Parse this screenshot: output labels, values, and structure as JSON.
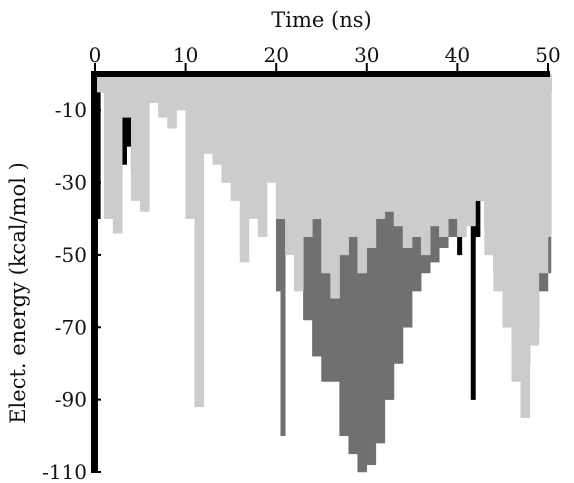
{
  "chart_data": {
    "type": "line",
    "title": "",
    "xlabel": "Time (ns)",
    "ylabel": "Elect. energy (kcal/mol )",
    "x_axis_position": "top",
    "xlim": [
      0,
      50
    ],
    "ylim": [
      -110,
      0
    ],
    "x_ticks": [
      0,
      10,
      20,
      30,
      40,
      50
    ],
    "y_ticks": [
      -10,
      -30,
      -50,
      -70,
      -90,
      -110
    ],
    "grid": false,
    "legend": "none",
    "series": [
      {
        "color": "#000000",
        "x": [
          0,
          0.3,
          0.6,
          1.5,
          2,
          2.5,
          3,
          3.5,
          4,
          4.5,
          5,
          6,
          8,
          10,
          12,
          14,
          16,
          18,
          19.5,
          20,
          20.5,
          21,
          22,
          24,
          26,
          28,
          30,
          32,
          34,
          36,
          38,
          39,
          40,
          40.5,
          41,
          41.5,
          42,
          42.5,
          43,
          44,
          45,
          46,
          47,
          48,
          49,
          50
        ],
        "y": [
          -110,
          -40,
          -5,
          -3,
          -20,
          -28,
          -25,
          -20,
          -27,
          -32,
          -3,
          -4,
          -3,
          -3,
          -3,
          -2,
          -3,
          -3,
          -3,
          -2,
          -3,
          -2,
          -3,
          -2,
          -3,
          -2,
          -2,
          -2,
          -2,
          -2,
          -3,
          -40,
          -50,
          -15,
          -3,
          -90,
          -45,
          -3,
          -2,
          -2,
          -3,
          -2,
          -3,
          -2,
          -3,
          -5
        ]
      },
      {
        "color": "#707070",
        "x": [
          0,
          1,
          4,
          8,
          12,
          16,
          19,
          20,
          20.5,
          21,
          22,
          23,
          24,
          25,
          26,
          27,
          28,
          29,
          30,
          31,
          32,
          33,
          34,
          35,
          36,
          37,
          38,
          39,
          40,
          41,
          42,
          43,
          44,
          45,
          46,
          47,
          48,
          49,
          50
        ],
        "y": [
          -3,
          -4,
          -5,
          -5,
          -4,
          -5,
          -4,
          -60,
          -100,
          -40,
          -55,
          -68,
          -78,
          -85,
          -85,
          -100,
          -105,
          -110,
          -108,
          -102,
          -90,
          -80,
          -70,
          -60,
          -55,
          -52,
          -48,
          -45,
          -30,
          -25,
          -35,
          -42,
          -55,
          -60,
          -75,
          -80,
          -70,
          -60,
          -55
        ]
      },
      {
        "color": "#cccccc",
        "x": [
          0,
          1,
          2,
          3,
          4,
          5,
          6,
          7,
          8,
          9,
          10,
          11,
          12,
          13,
          14,
          15,
          16,
          17,
          18,
          19,
          20,
          21,
          22,
          23,
          24,
          25,
          26,
          27,
          28,
          29,
          30,
          31,
          32,
          33,
          34,
          35,
          36,
          37,
          38,
          39,
          40,
          41,
          42,
          43,
          44,
          45,
          46,
          47,
          48,
          49,
          50
        ],
        "y": [
          -5,
          -40,
          -44,
          -12,
          -35,
          -38,
          -8,
          -12,
          -15,
          -10,
          -40,
          -92,
          -22,
          -25,
          -30,
          -35,
          -52,
          -40,
          -45,
          -30,
          -40,
          -50,
          -60,
          -45,
          -40,
          -55,
          -62,
          -50,
          -45,
          -55,
          -48,
          -40,
          -38,
          -42,
          -48,
          -45,
          -50,
          -42,
          -45,
          -40,
          -45,
          -42,
          -35,
          -50,
          -60,
          -70,
          -85,
          -95,
          -75,
          -55,
          -45
        ]
      }
    ]
  }
}
